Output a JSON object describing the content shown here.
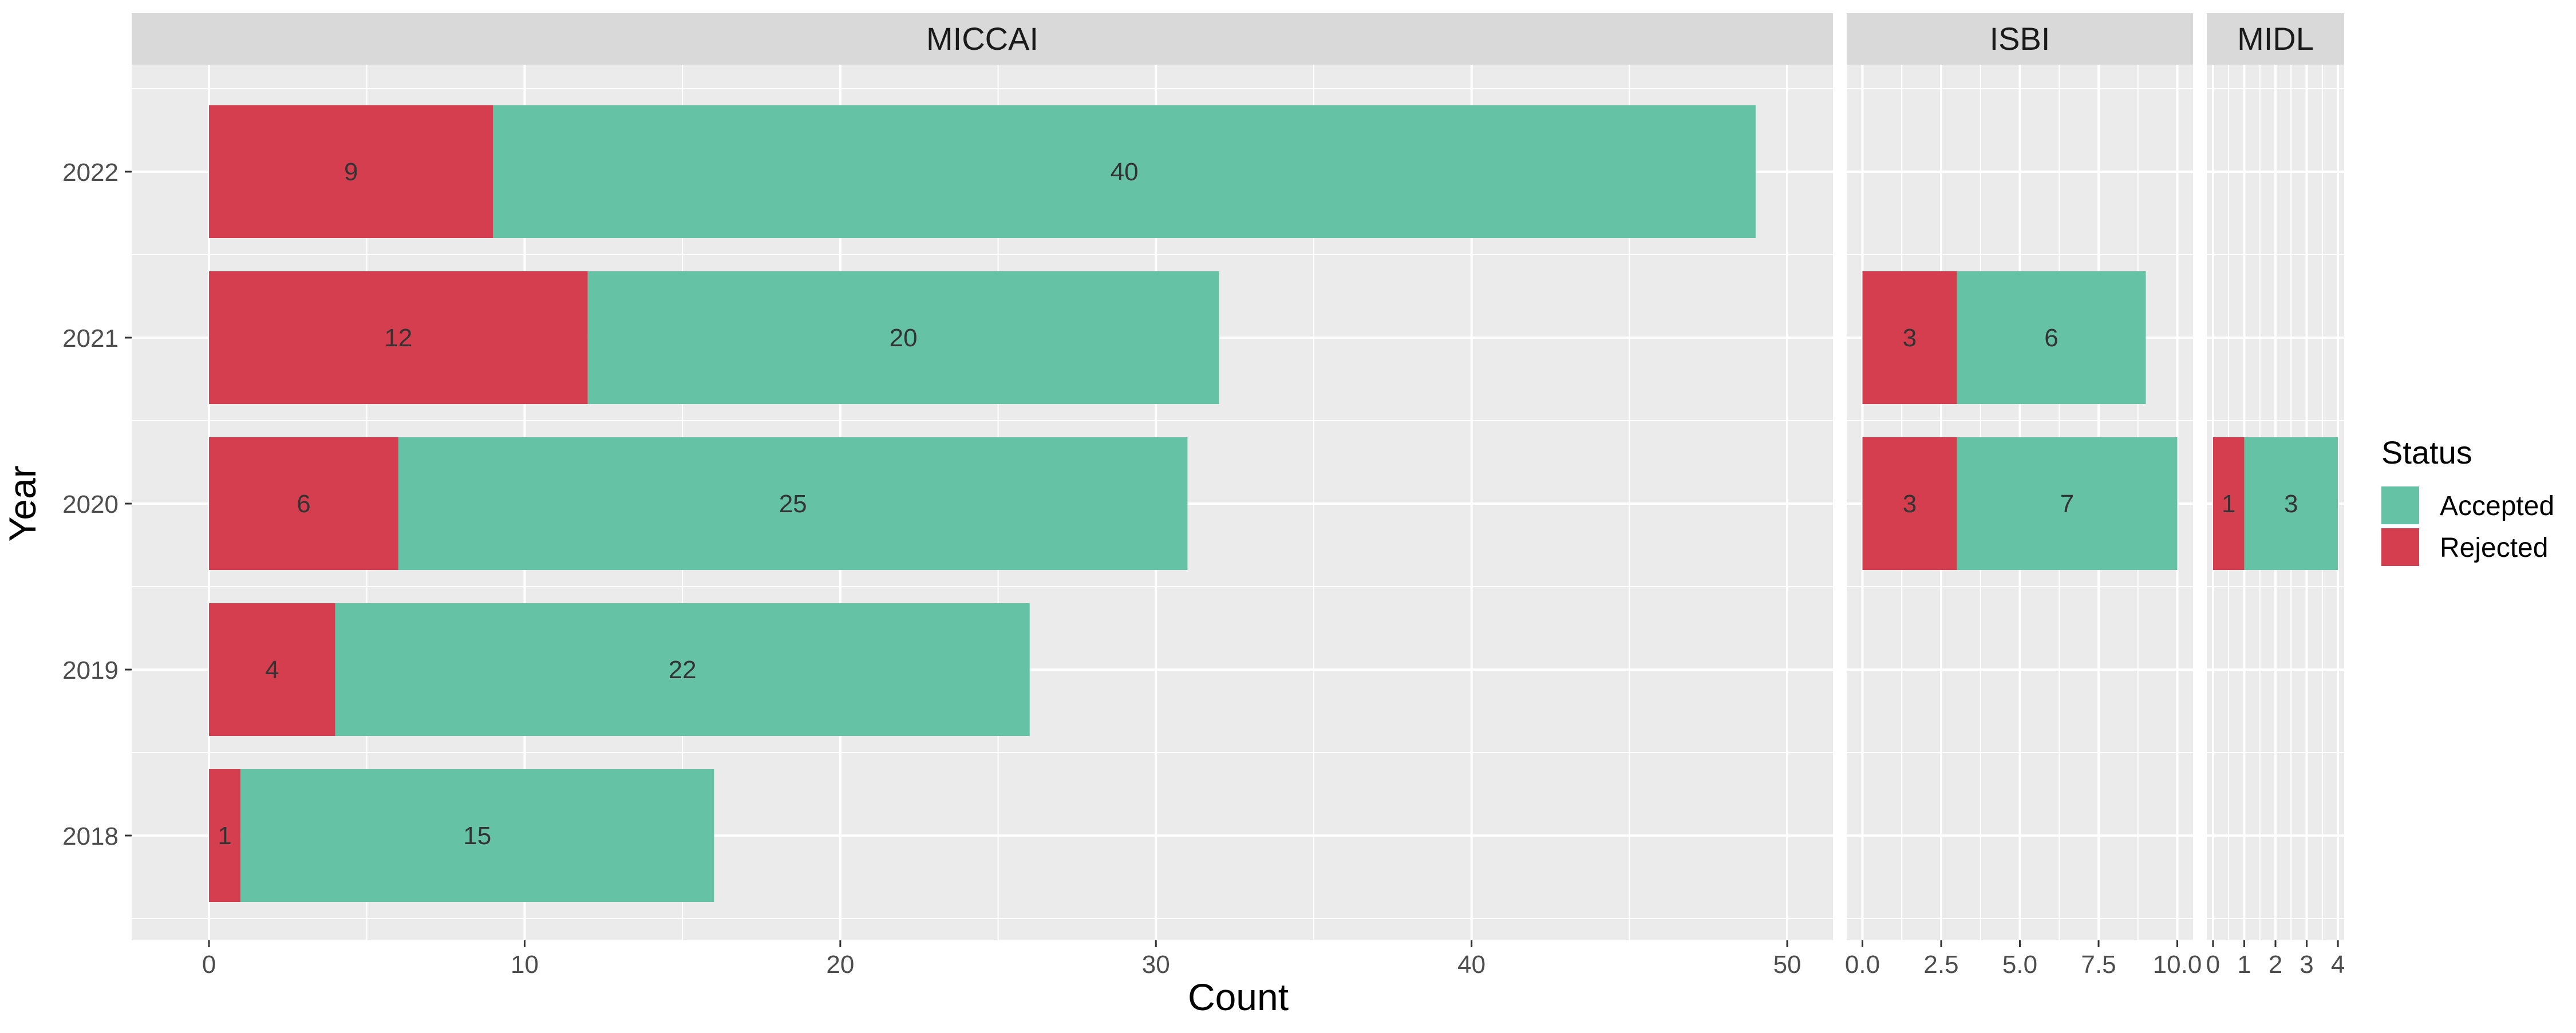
{
  "chart_data": {
    "type": "bar",
    "orientation": "horizontal",
    "stacked": true,
    "x_axis_label": "Count",
    "y_axis_label": "Year",
    "categories": [
      "2018",
      "2019",
      "2020",
      "2021",
      "2022"
    ],
    "legend": {
      "title": "Status",
      "placement": "right",
      "entries": [
        {
          "name": "Accepted",
          "color": "#66C2A5"
        },
        {
          "name": "Rejected",
          "color": "#D53E4F"
        }
      ]
    },
    "panels": [
      {
        "title": "MICCAI",
        "xlim": [
          -2.45,
          51.45
        ],
        "xticks": [
          "0",
          "10",
          "20",
          "30",
          "40",
          "50"
        ],
        "xtick_values": [
          0,
          10,
          20,
          30,
          40,
          50
        ],
        "minor_xticks": [
          5,
          15,
          25,
          35,
          45
        ],
        "series": [
          {
            "name": "Rejected",
            "values": [
              1,
              4,
              6,
              12,
              9
            ]
          },
          {
            "name": "Accepted",
            "values": [
              15,
              22,
              25,
              20,
              40
            ]
          }
        ]
      },
      {
        "title": "ISBI",
        "xlim": [
          -0.5,
          10.5
        ],
        "xticks": [
          "0.0",
          "2.5",
          "5.0",
          "7.5",
          "10.0"
        ],
        "xtick_values": [
          0,
          2.5,
          5,
          7.5,
          10
        ],
        "minor_xticks": [
          1.25,
          3.75,
          6.25,
          8.75
        ],
        "series": [
          {
            "name": "Rejected",
            "values": [
              null,
              null,
              3,
              3,
              null
            ]
          },
          {
            "name": "Accepted",
            "values": [
              null,
              null,
              7,
              6,
              null
            ]
          }
        ]
      },
      {
        "title": "MIDL",
        "xlim": [
          -0.2,
          4.2
        ],
        "xticks": [
          "0",
          "1",
          "2",
          "3",
          "4"
        ],
        "xtick_values": [
          0,
          1,
          2,
          3,
          4
        ],
        "minor_xticks": [
          0.5,
          1.5,
          2.5,
          3.5
        ],
        "series": [
          {
            "name": "Rejected",
            "values": [
              null,
              null,
              1,
              null,
              null
            ]
          },
          {
            "name": "Accepted",
            "values": [
              null,
              null,
              3,
              null,
              null
            ]
          }
        ]
      }
    ]
  }
}
